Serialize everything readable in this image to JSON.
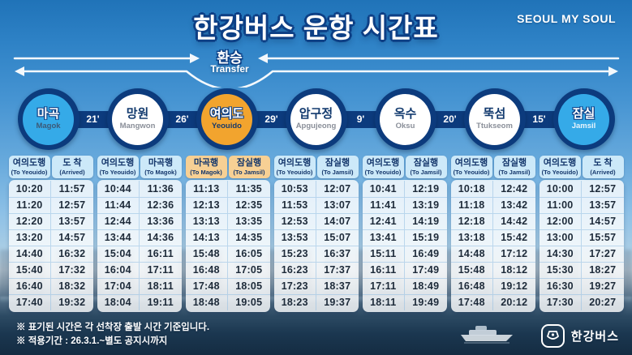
{
  "title": "한강버스 운항 시간표",
  "brand": "SEOUL MY SOUL",
  "transfer": {
    "ko": "환승",
    "en": "Transfer"
  },
  "colors": {
    "navy": "#0c3b7d",
    "terminal_fill": "#35aae8",
    "transfer_fill": "#f2a42e",
    "white_fill": "#ffffff",
    "header_bg": "#cce9f9",
    "highlight_bg": "#f7d094"
  },
  "stations": [
    {
      "ko": "마곡",
      "en": "Magok",
      "fill": "#35aae8",
      "style": "light",
      "en_color": "#3c5a78"
    },
    {
      "ko": "망원",
      "en": "Mangwon",
      "fill": "#ffffff",
      "style": "dark",
      "en_color": "#8a8f99"
    },
    {
      "ko": "여의도",
      "en": "Yeouido",
      "fill": "#f2a42e",
      "style": "light",
      "en_color": "#173a6b"
    },
    {
      "ko": "압구정",
      "en": "Apgujeong",
      "fill": "#ffffff",
      "style": "dark",
      "en_color": "#8a8f99"
    },
    {
      "ko": "옥수",
      "en": "Oksu",
      "fill": "#ffffff",
      "style": "dark",
      "en_color": "#8a8f99"
    },
    {
      "ko": "뚝섬",
      "en": "Ttukseom",
      "fill": "#ffffff",
      "style": "dark",
      "en_color": "#8a8f99"
    },
    {
      "ko": "잠실",
      "en": "Jamsil",
      "fill": "#35aae8",
      "style": "light",
      "en_color": "#e8f4fc"
    }
  ],
  "intervals": [
    "21'",
    "26'",
    "29'",
    "9'",
    "20'",
    "15'"
  ],
  "tables": [
    {
      "station": "Magok",
      "highlight": false,
      "columns": [
        {
          "ko": "여의도행",
          "en": "(To Yeouido)"
        },
        {
          "ko": "도 착",
          "en": "(Arrived)"
        }
      ],
      "rows": [
        [
          "10:20",
          "11:57"
        ],
        [
          "11:20",
          "12:57"
        ],
        [
          "12:20",
          "13:57"
        ],
        [
          "13:20",
          "14:57"
        ],
        [
          "14:40",
          "16:32"
        ],
        [
          "15:40",
          "17:32"
        ],
        [
          "16:40",
          "18:32"
        ],
        [
          "17:40",
          "19:32"
        ]
      ]
    },
    {
      "station": "Mangwon",
      "highlight": false,
      "columns": [
        {
          "ko": "여의도행",
          "en": "(To Yeouido)"
        },
        {
          "ko": "마곡행",
          "en": "(To Magok)"
        }
      ],
      "rows": [
        [
          "10:44",
          "11:36"
        ],
        [
          "11:44",
          "12:36"
        ],
        [
          "12:44",
          "13:36"
        ],
        [
          "13:44",
          "14:36"
        ],
        [
          "15:04",
          "16:11"
        ],
        [
          "16:04",
          "17:11"
        ],
        [
          "17:04",
          "18:11"
        ],
        [
          "18:04",
          "19:11"
        ]
      ]
    },
    {
      "station": "Yeouido",
      "highlight": true,
      "columns": [
        {
          "ko": "마곡행",
          "en": "(To Magok)"
        },
        {
          "ko": "잠실행",
          "en": "(To Jamsil)"
        }
      ],
      "rows": [
        [
          "11:13",
          "11:35"
        ],
        [
          "12:13",
          "12:35"
        ],
        [
          "13:13",
          "13:35"
        ],
        [
          "14:13",
          "14:35"
        ],
        [
          "15:48",
          "16:05"
        ],
        [
          "16:48",
          "17:05"
        ],
        [
          "17:48",
          "18:05"
        ],
        [
          "18:48",
          "19:05"
        ]
      ]
    },
    {
      "station": "Apgujeong",
      "highlight": false,
      "columns": [
        {
          "ko": "여의도행",
          "en": "(To Yeouido)"
        },
        {
          "ko": "잠실행",
          "en": "(To Jamsil)"
        }
      ],
      "rows": [
        [
          "10:53",
          "12:07"
        ],
        [
          "11:53",
          "13:07"
        ],
        [
          "12:53",
          "14:07"
        ],
        [
          "13:53",
          "15:07"
        ],
        [
          "15:23",
          "16:37"
        ],
        [
          "16:23",
          "17:37"
        ],
        [
          "17:23",
          "18:37"
        ],
        [
          "18:23",
          "19:37"
        ]
      ]
    },
    {
      "station": "Oksu",
      "highlight": false,
      "columns": [
        {
          "ko": "여의도행",
          "en": "(To Yeouido)"
        },
        {
          "ko": "잠실행",
          "en": "(To Jamsil)"
        }
      ],
      "rows": [
        [
          "10:41",
          "12:19"
        ],
        [
          "11:41",
          "13:19"
        ],
        [
          "12:41",
          "14:19"
        ],
        [
          "13:41",
          "15:19"
        ],
        [
          "15:11",
          "16:49"
        ],
        [
          "16:11",
          "17:49"
        ],
        [
          "17:11",
          "18:49"
        ],
        [
          "18:11",
          "19:49"
        ]
      ]
    },
    {
      "station": "Ttukseom",
      "highlight": false,
      "columns": [
        {
          "ko": "여의도행",
          "en": "(To Yeouido)"
        },
        {
          "ko": "잠실행",
          "en": "(To Jamsil)"
        }
      ],
      "rows": [
        [
          "10:18",
          "12:42"
        ],
        [
          "11:18",
          "13:42"
        ],
        [
          "12:18",
          "14:42"
        ],
        [
          "13:18",
          "15:42"
        ],
        [
          "14:48",
          "17:12"
        ],
        [
          "15:48",
          "18:12"
        ],
        [
          "16:48",
          "19:12"
        ],
        [
          "17:48",
          "20:12"
        ]
      ]
    },
    {
      "station": "Jamsil",
      "highlight": false,
      "columns": [
        {
          "ko": "여의도행",
          "en": "(To Yeouido)"
        },
        {
          "ko": "도 착",
          "en": "(Arrived)"
        }
      ],
      "rows": [
        [
          "10:00",
          "12:57"
        ],
        [
          "11:00",
          "13:57"
        ],
        [
          "12:00",
          "14:57"
        ],
        [
          "13:00",
          "15:57"
        ],
        [
          "14:30",
          "17:27"
        ],
        [
          "15:30",
          "18:27"
        ],
        [
          "16:30",
          "19:27"
        ],
        [
          "17:30",
          "20:27"
        ]
      ]
    }
  ],
  "notes": [
    "※ 표기된 시간은 각 선착장 출발 시간 기준입니다.",
    "※ 적용기간 : 26.3.1.~별도 공지시까지"
  ],
  "logo_text": "한강버스"
}
